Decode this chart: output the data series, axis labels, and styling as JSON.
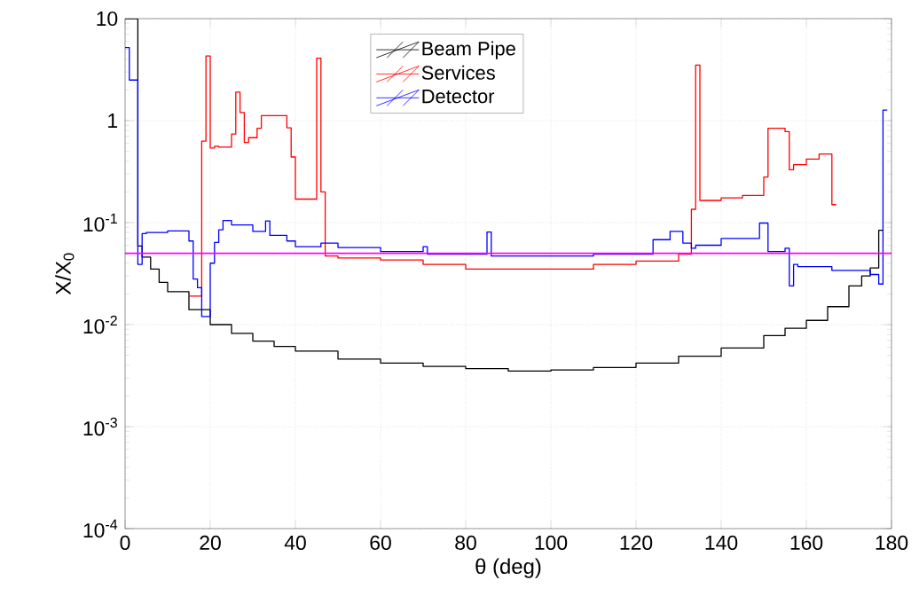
{
  "chart_data": {
    "type": "step",
    "xlabel": "θ (deg)",
    "ylabel": "X/X$_{0}$",
    "xlim": [
      0,
      180
    ],
    "xticks": [
      0,
      20,
      40,
      60,
      80,
      100,
      120,
      140,
      160,
      180
    ],
    "ylim": [
      0.0001,
      10
    ],
    "yticks": [
      {
        "value": 0.0001,
        "label": "10$^{-4}$"
      },
      {
        "value": 0.001,
        "label": "10$^{-3}$"
      },
      {
        "value": 0.01,
        "label": "10$^{-2}$"
      },
      {
        "value": 0.1,
        "label": "10$^{-1}$"
      },
      1,
      10
    ],
    "log": "y",
    "grid": true,
    "legend": "top",
    "ref_lines": [
      {
        "axis": "y",
        "value": 0.05,
        "color": "#ff00ff"
      }
    ],
    "series": [
      {
        "name": "Beam Pipe",
        "color": "#000000",
        "x": [
          0,
          3,
          4,
          6,
          8,
          10,
          15,
          20,
          25,
          30,
          35,
          40,
          50,
          60,
          70,
          80,
          90,
          100,
          110,
          120,
          130,
          140,
          150,
          155,
          160,
          165,
          170,
          173,
          175,
          177,
          178
        ],
        "values": [
          10,
          0.059,
          0.046,
          0.035,
          0.026,
          0.021,
          0.014,
          0.01,
          0.0082,
          0.0069,
          0.0061,
          0.0055,
          0.0046,
          0.0042,
          0.0039,
          0.0037,
          0.0035,
          0.0036,
          0.0038,
          0.0042,
          0.0049,
          0.0059,
          0.0078,
          0.0092,
          0.011,
          0.015,
          0.024,
          0.03,
          0.036,
          0.084,
          0.084
        ]
      },
      {
        "name": "Services",
        "color": "#ff0000",
        "x": [
          15,
          18,
          19,
          20,
          21,
          22,
          25,
          26,
          27,
          28,
          29,
          31,
          32,
          38,
          39,
          40,
          45,
          46,
          47,
          50,
          60,
          70,
          80,
          90,
          100,
          110,
          120,
          130,
          133,
          134,
          135,
          140,
          145,
          150,
          151,
          155,
          156,
          157,
          160,
          163,
          166,
          167
        ],
        "values": [
          0.019,
          0.63,
          4.3,
          0.54,
          0.56,
          0.55,
          0.74,
          1.9,
          1.2,
          0.61,
          0.68,
          0.84,
          1.12,
          0.85,
          0.44,
          0.17,
          4.1,
          0.2,
          0.047,
          0.045,
          0.043,
          0.039,
          0.035,
          0.035,
          0.035,
          0.039,
          0.042,
          0.049,
          0.135,
          3.5,
          0.165,
          0.175,
          0.185,
          0.28,
          0.84,
          0.78,
          0.33,
          0.37,
          0.42,
          0.47,
          0.15,
          0.15
        ]
      },
      {
        "name": "Detector",
        "color": "#0000ff",
        "x": [
          0,
          1,
          3,
          4,
          5,
          10,
          15,
          16,
          17,
          18,
          20,
          21,
          22,
          23,
          25,
          30,
          33,
          34,
          38,
          40,
          46,
          47,
          50,
          60,
          70,
          71,
          85,
          86,
          110,
          124,
          125,
          128,
          131,
          133,
          134,
          140,
          149,
          151,
          155,
          156,
          157,
          158,
          166,
          175,
          177,
          178,
          179
        ],
        "values": [
          5.2,
          2.5,
          0.039,
          0.078,
          0.08,
          0.083,
          0.066,
          0.028,
          0.023,
          0.012,
          0.04,
          0.064,
          0.085,
          0.105,
          0.095,
          0.082,
          0.104,
          0.075,
          0.066,
          0.058,
          0.063,
          0.063,
          0.057,
          0.052,
          0.058,
          0.049,
          0.081,
          0.047,
          0.049,
          0.068,
          0.068,
          0.082,
          0.063,
          0.056,
          0.06,
          0.07,
          0.099,
          0.052,
          0.056,
          0.024,
          0.039,
          0.037,
          0.034,
          0.031,
          0.025,
          1.27,
          1.27
        ]
      }
    ]
  }
}
